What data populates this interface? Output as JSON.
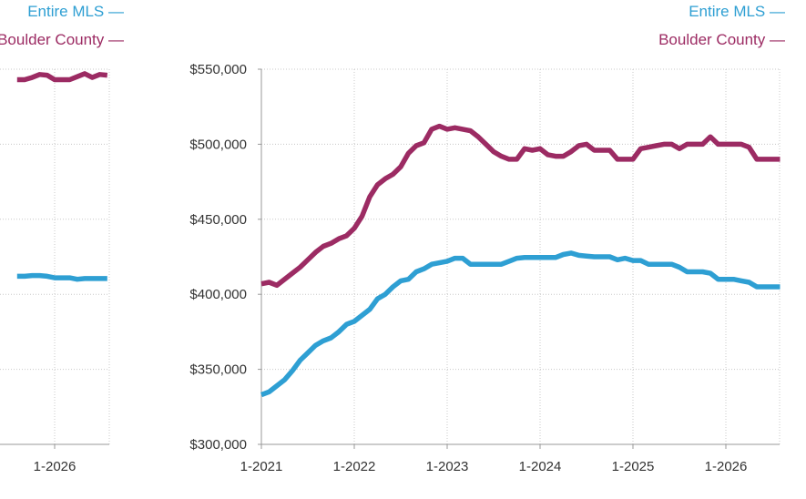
{
  "colors": {
    "entire_mls": "#2e9fd3",
    "boulder_county": "#9c2b63",
    "grid": "#c8c8c8",
    "axis": "#999999"
  },
  "chart_data": [
    {
      "type": "line",
      "title": "",
      "xlabel": "",
      "ylabel": "",
      "x_tick_labels": [
        "1-2026"
      ],
      "y_tick_labels": [],
      "ylim": [
        300000,
        550000
      ],
      "grid": true,
      "legend_position": "top-right",
      "legend": [
        {
          "name": "Entire MLS",
          "marker": "—"
        },
        {
          "name": "Boulder County",
          "marker": "—"
        }
      ],
      "x": [
        "2025-08",
        "2025-09",
        "2025-10",
        "2025-11",
        "2025-12",
        "2026-01",
        "2026-02",
        "2026-03",
        "2026-04",
        "2026-05",
        "2026-06",
        "2026-07",
        "2026-08"
      ],
      "series": [
        {
          "name": "Entire MLS",
          "values": [
            412000,
            412000,
            412500,
            412500,
            412000,
            411000,
            411000,
            411000,
            410000,
            410500,
            410500,
            410500,
            410500
          ]
        },
        {
          "name": "Boulder County",
          "values": [
            543000,
            543000,
            544500,
            546500,
            546000,
            543000,
            543000,
            543000,
            545000,
            547000,
            544500,
            546500,
            546000
          ]
        }
      ]
    },
    {
      "type": "line",
      "title": "",
      "xlabel": "",
      "ylabel": "",
      "x_tick_labels": [
        "1-2021",
        "1-2022",
        "1-2023",
        "1-2024",
        "1-2025",
        "1-2026"
      ],
      "y_tick_labels": [
        "$300,000",
        "$350,000",
        "$400,000",
        "$450,000",
        "$500,000",
        "$550,000"
      ],
      "ylim": [
        300000,
        550000
      ],
      "grid": true,
      "legend_position": "top-right",
      "legend": [
        {
          "name": "Entire MLS",
          "marker": "—"
        },
        {
          "name": "Boulder County",
          "marker": "—"
        }
      ],
      "x": [
        "2021-01",
        "2021-02",
        "2021-03",
        "2021-04",
        "2021-05",
        "2021-06",
        "2021-07",
        "2021-08",
        "2021-09",
        "2021-10",
        "2021-11",
        "2021-12",
        "2022-01",
        "2022-02",
        "2022-03",
        "2022-04",
        "2022-05",
        "2022-06",
        "2022-07",
        "2022-08",
        "2022-09",
        "2022-10",
        "2022-11",
        "2022-12",
        "2023-01",
        "2023-02",
        "2023-03",
        "2023-04",
        "2023-05",
        "2023-06",
        "2023-07",
        "2023-08",
        "2023-09",
        "2023-10",
        "2023-11",
        "2023-12",
        "2024-01",
        "2024-02",
        "2024-03",
        "2024-04",
        "2024-05",
        "2024-06",
        "2024-07",
        "2024-08",
        "2024-09",
        "2024-10",
        "2024-11",
        "2024-12",
        "2025-01",
        "2025-02",
        "2025-03",
        "2025-04",
        "2025-05",
        "2025-06",
        "2025-07",
        "2025-08",
        "2025-09",
        "2025-10",
        "2025-11",
        "2025-12",
        "2026-01",
        "2026-02",
        "2026-03",
        "2026-04",
        "2026-05",
        "2026-06",
        "2026-07",
        "2026-08"
      ],
      "series": [
        {
          "name": "Entire MLS",
          "values": [
            333000,
            335000,
            339000,
            343000,
            349000,
            356000,
            361000,
            366000,
            369000,
            371000,
            375000,
            380000,
            382000,
            386000,
            390000,
            397000,
            400000,
            405000,
            409000,
            410000,
            415000,
            417000,
            420000,
            421000,
            422000,
            424000,
            424000,
            420000,
            420000,
            420000,
            420000,
            420000,
            422000,
            424000,
            424500,
            424500,
            424500,
            424500,
            424500,
            426500,
            427500,
            426000,
            425500,
            425000,
            425000,
            425000,
            423000,
            424000,
            422500,
            422500,
            420000,
            420000,
            420000,
            420000,
            418000,
            415000,
            415000,
            415000,
            414000,
            410000,
            410000,
            410000,
            409000,
            408000,
            405000,
            405000,
            405000,
            405000
          ]
        },
        {
          "name": "Boulder County",
          "values": [
            407000,
            408000,
            406000,
            410000,
            414000,
            418000,
            423000,
            428000,
            432000,
            434000,
            437000,
            439000,
            444000,
            452000,
            465000,
            473000,
            477000,
            480000,
            485000,
            494000,
            499000,
            501000,
            510000,
            512000,
            510000,
            511000,
            510000,
            509000,
            505000,
            500000,
            495000,
            492000,
            490000,
            490000,
            497000,
            496000,
            497000,
            493000,
            492000,
            492000,
            495000,
            499000,
            500000,
            496000,
            496000,
            496000,
            490000,
            490000,
            490000,
            497000,
            498000,
            499000,
            500000,
            500000,
            497000,
            500000,
            500000,
            500000,
            505000,
            500000,
            500000,
            500000,
            500000,
            498000,
            490000,
            490000,
            490000,
            490000
          ]
        }
      ]
    }
  ]
}
